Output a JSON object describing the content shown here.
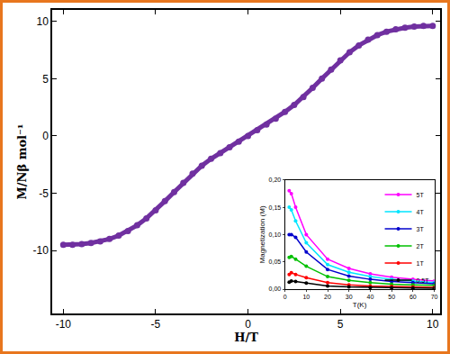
{
  "chart_data": [
    {
      "type": "scatter",
      "x_label": "H/T",
      "y_label": "M/Nβ mol⁻¹",
      "x": [
        -10,
        -9.5,
        -9,
        -8.5,
        -8,
        -7.5,
        -7,
        -6.5,
        -6,
        -5.5,
        -5,
        -4.5,
        -4,
        -3.5,
        -3,
        -2.5,
        -2,
        -1.5,
        -1,
        -0.5,
        0,
        0.5,
        1,
        1.5,
        2,
        2.5,
        3,
        3.5,
        4,
        4.5,
        5,
        5.5,
        6,
        6.5,
        7,
        7.5,
        8,
        8.5,
        9,
        9.5,
        10
      ],
      "values": [
        -9.5,
        -9.5,
        -9.45,
        -9.35,
        -9.2,
        -9.0,
        -8.7,
        -8.3,
        -7.8,
        -7.2,
        -6.5,
        -5.7,
        -4.9,
        -4.1,
        -3.3,
        -2.6,
        -2.0,
        -1.5,
        -1.0,
        -0.5,
        0,
        0.5,
        1.0,
        1.5,
        2.1,
        2.7,
        3.4,
        4.2,
        5.0,
        5.8,
        6.6,
        7.3,
        7.9,
        8.4,
        8.8,
        9.1,
        9.3,
        9.45,
        9.55,
        9.6,
        9.6
      ],
      "color": "#7030A0",
      "marker": "circle",
      "line_style": "solid",
      "xlim": [
        -10.6,
        10.4
      ],
      "ylim": [
        -15.5,
        11
      ],
      "xticks": [
        -10,
        -5,
        0,
        5,
        10
      ],
      "yticks": [
        -10,
        -5,
        0,
        5,
        10
      ],
      "grid": false
    },
    {
      "type": "line",
      "x_label": "T(K)",
      "y_label": "Magnetization (M)",
      "x": [
        2,
        3,
        5,
        10,
        20,
        30,
        40,
        50,
        60,
        70
      ],
      "series": [
        {
          "name": "5T",
          "color": "#FF00FF",
          "values": [
            0.18,
            0.175,
            0.15,
            0.1,
            0.055,
            0.038,
            0.028,
            0.022,
            0.018,
            0.015
          ]
        },
        {
          "name": "4T",
          "color": "#00E5FF",
          "values": [
            0.15,
            0.145,
            0.125,
            0.085,
            0.045,
            0.031,
            0.023,
            0.018,
            0.015,
            0.012
          ]
        },
        {
          "name": "3T",
          "color": "#0000CC",
          "values": [
            0.1,
            0.1,
            0.095,
            0.068,
            0.036,
            0.024,
            0.018,
            0.014,
            0.012,
            0.01
          ]
        },
        {
          "name": "2T",
          "color": "#00C000",
          "values": [
            0.058,
            0.06,
            0.055,
            0.042,
            0.023,
            0.016,
            0.012,
            0.009,
            0.008,
            0.007
          ]
        },
        {
          "name": "1T",
          "color": "#FF0000",
          "values": [
            0.027,
            0.03,
            0.027,
            0.021,
            0.012,
            0.008,
            0.006,
            0.005,
            0.004,
            0.0035
          ]
        },
        {
          "name": "0.5T",
          "color": "#000000",
          "values": [
            0.013,
            0.015,
            0.014,
            0.011,
            0.006,
            0.004,
            0.003,
            0.0025,
            0.002,
            0.0018
          ]
        }
      ],
      "marker": "circle",
      "line_style": "solid",
      "xlim": [
        0,
        70
      ],
      "ylim": [
        0,
        0.2
      ],
      "xticks": [
        0,
        10,
        20,
        30,
        40,
        50,
        60,
        70
      ],
      "yticks": [
        {
          "value": 0,
          "label": "0,00"
        },
        {
          "value": 0.05,
          "label": "0,05"
        },
        {
          "value": 0.1,
          "label": "0,10"
        },
        {
          "value": 0.15,
          "label": "0,15"
        },
        {
          "value": 0.2,
          "label": "0,20"
        }
      ],
      "legend": "upper right",
      "grid": false
    }
  ]
}
